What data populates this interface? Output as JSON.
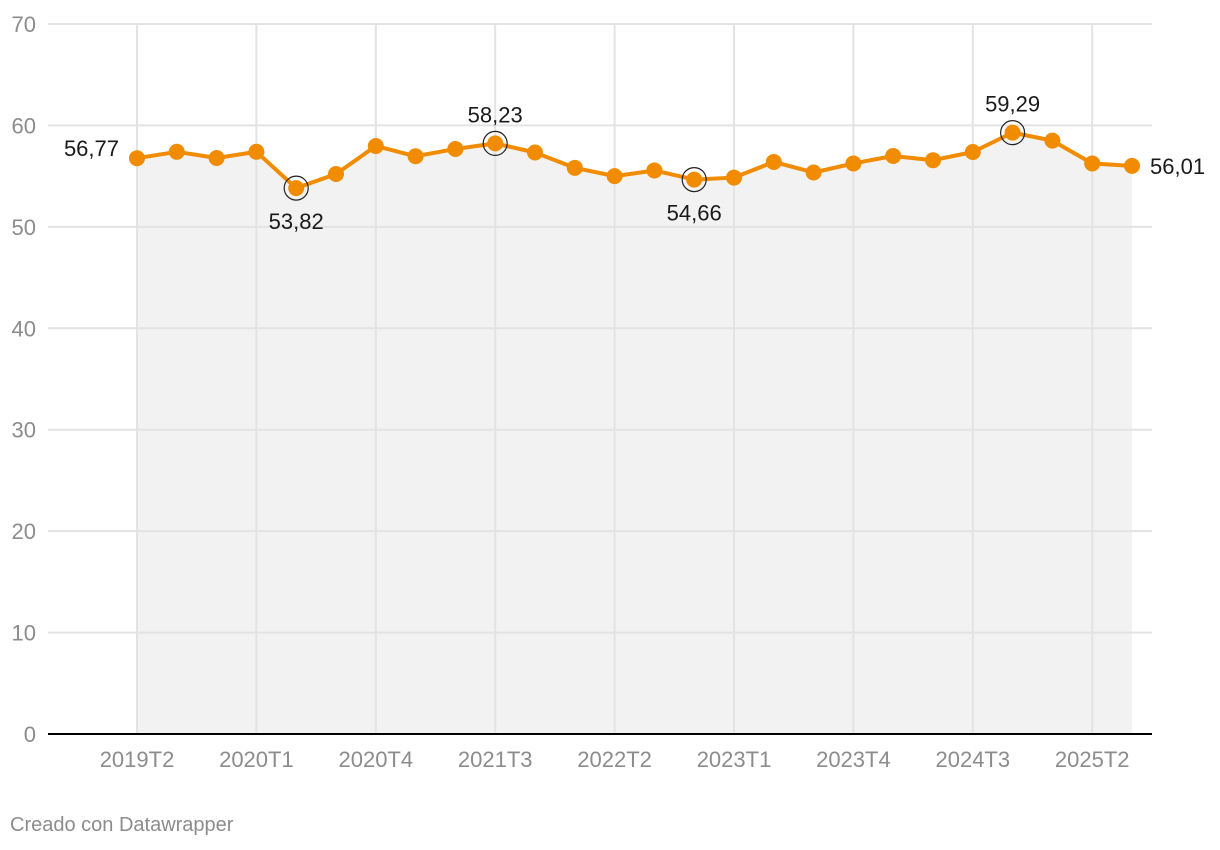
{
  "chart_data": {
    "type": "line",
    "x": [
      "2019T2",
      "2019T3",
      "2019T4",
      "2020T1",
      "2020T2",
      "2020T3",
      "2020T4",
      "2021T1",
      "2021T2",
      "2021T3",
      "2021T4",
      "2022T1",
      "2022T2",
      "2022T3",
      "2022T4",
      "2023T1",
      "2023T2",
      "2023T3",
      "2023T4",
      "2024T1",
      "2024T2",
      "2024T3",
      "2024T4",
      "2025T1",
      "2025T2",
      "2025T3"
    ],
    "series": [
      {
        "values": [
          56.77,
          57.4,
          56.79,
          57.4,
          53.82,
          55.21,
          57.97,
          56.96,
          57.68,
          58.23,
          57.33,
          55.82,
          55.0,
          55.56,
          54.66,
          54.86,
          56.4,
          55.36,
          56.25,
          56.99,
          56.57,
          57.38,
          59.29,
          58.5,
          56.25,
          56.01
        ]
      }
    ],
    "highlighted": [
      {
        "x": "2019T2",
        "label": "56,77",
        "circled": false
      },
      {
        "x": "2020T2",
        "label": "53,82",
        "circled": true
      },
      {
        "x": "2021T3",
        "label": "58,23",
        "circled": true
      },
      {
        "x": "2022T4",
        "label": "54,66",
        "circled": true
      },
      {
        "x": "2024T4",
        "label": "59,29",
        "circled": true
      },
      {
        "x": "2025T3",
        "label": "56,01",
        "circled": false
      }
    ],
    "x_tick_labels": [
      "2019T2",
      "2020T1",
      "2020T4",
      "2021T3",
      "2022T2",
      "2023T1",
      "2023T4",
      "2024T3",
      "2025T2"
    ],
    "y_ticks": [
      0,
      10,
      20,
      30,
      40,
      50,
      60,
      70
    ],
    "ylim": [
      0,
      70
    ],
    "grid": true,
    "area_fill": true,
    "title": "",
    "xlabel": "",
    "ylabel": "",
    "colors": {
      "line": "#f18b00",
      "area": "#f0f0f0",
      "grid": "#e3e3e3",
      "axis": "#000000",
      "tick_text": "#8c8c8c",
      "label_text": "#1a1a1a"
    }
  },
  "footer": {
    "credit": "Creado con Datawrapper"
  }
}
